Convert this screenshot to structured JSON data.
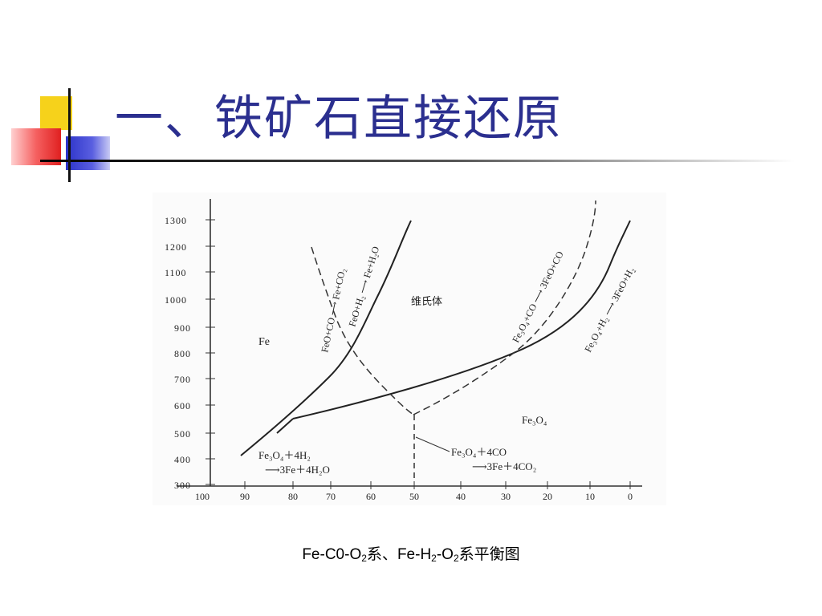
{
  "slide": {
    "title": "一、铁矿石直接还原",
    "accent_colors": {
      "yellow": "#f6d21b",
      "blue": "#2c33c9",
      "red": "#f03a3a",
      "title": "#2b2f8f"
    }
  },
  "diagram": {
    "y_ticks": [
      "1300",
      "1200",
      "1100",
      "1000",
      "900",
      "800",
      "700",
      "600",
      "500",
      "400",
      "300"
    ],
    "x_ticks": [
      "100",
      "90",
      "80",
      "70",
      "60",
      "50",
      "40",
      "30",
      "20",
      "10",
      "0"
    ],
    "regions": {
      "fe": "Fe",
      "wustite": "维氏体",
      "magnetite": "Fe₃O₄"
    },
    "curve_labels": {
      "feo_co": "FeO+CO ⟶ Fe+CO₂",
      "feo_h2": "FeO+H₂ ⟶ Fe+H₂O",
      "fe3o4_co": "Fe₃O₄+CO ⟶ 3FeO+CO",
      "fe3o4_h2": "Fe₃O₄+H₂ ⟶ 3FeO+H₂"
    },
    "reaction_h2": {
      "line1": "Fe₃O₄＋4H₂",
      "line2": "⟶3Fe＋4H₂O"
    },
    "reaction_co": {
      "line1": "Fe₃O₄＋4CO",
      "line2": "⟶3Fe＋4CO₂"
    }
  },
  "caption": {
    "p1": "Fe-C0-O",
    "s1": "2",
    "p2": "系、",
    "p3": "Fe-H",
    "s2": "2",
    "p4": "-O",
    "s3": "2",
    "p5": "系平衡图"
  }
}
